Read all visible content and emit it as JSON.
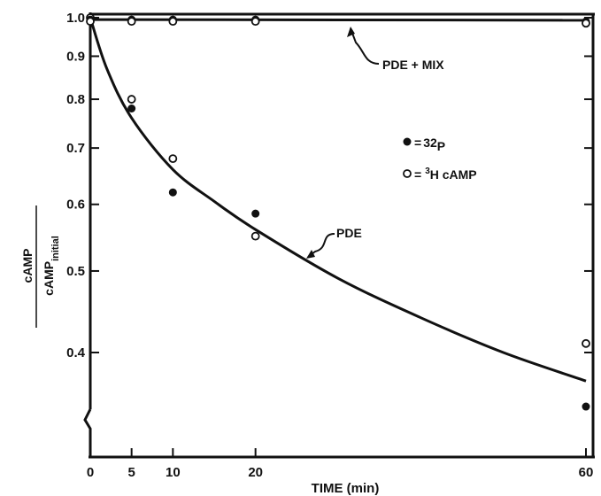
{
  "chart_data": {
    "type": "scatter",
    "title": "",
    "xlabel": "TIME (min)",
    "ylabel": "cAMP / cAMP initial",
    "ylabel_parts": {
      "numerator": "cAMP",
      "denominator": "cAMP",
      "subscript": "initial"
    },
    "xlim": [
      0,
      60
    ],
    "ylim": [
      0.33,
      1.0
    ],
    "yscale": "log",
    "grid": false,
    "x_ticks": [
      0,
      5,
      10,
      20,
      60
    ],
    "x_tick_labels": [
      "0",
      "5",
      "10",
      "20",
      "60"
    ],
    "y_ticks": [
      1.0,
      0.9,
      0.8,
      0.7,
      0.6,
      0.5,
      0.4
    ],
    "y_tick_labels": [
      "1.0",
      "0.9",
      "0.8",
      "0.7",
      "0.6",
      "0.5",
      "0.4"
    ],
    "legend_position": "right",
    "legend": [
      {
        "marker": "filled-circle",
        "sign": "=",
        "base": "32",
        "tail": "P"
      },
      {
        "marker": "open-circle",
        "sign": "=",
        "sup": "3",
        "base": "H cAMP"
      }
    ],
    "series": [
      {
        "marker": "filled-circle",
        "x": [
          0,
          5,
          10,
          20,
          60
        ],
        "y": [
          1.0,
          0.78,
          0.62,
          0.585,
          0.345
        ]
      },
      {
        "marker": "open-circle",
        "x": [
          0,
          5,
          10,
          20,
          60
        ],
        "y": [
          1.0,
          0.8,
          0.68,
          0.55,
          0.41
        ]
      },
      {
        "marker": "filled-circle",
        "x": [
          0,
          5,
          10,
          20,
          60
        ],
        "y": [
          0.995,
          0.995,
          0.995,
          0.995,
          0.99
        ]
      },
      {
        "marker": "open-circle",
        "x": [
          0,
          5,
          10,
          20,
          60
        ],
        "y": [
          0.99,
          0.99,
          0.99,
          0.99,
          0.985
        ]
      }
    ],
    "curves": [
      {
        "label": "PDE + MIX",
        "x": [
          0,
          60
        ],
        "y": [
          0.995,
          0.993
        ]
      },
      {
        "label": "PDE",
        "x": [
          0,
          2,
          5,
          10,
          15,
          20,
          30,
          40,
          50,
          60
        ],
        "y": [
          1.0,
          0.87,
          0.76,
          0.66,
          0.605,
          0.56,
          0.49,
          0.44,
          0.4,
          0.37
        ]
      }
    ]
  }
}
